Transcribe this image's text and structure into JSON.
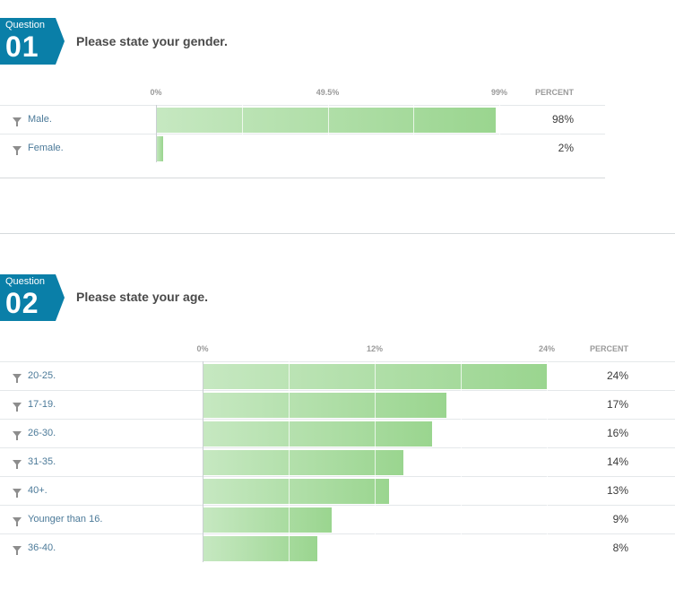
{
  "questions": [
    {
      "label": "Question",
      "number": "01",
      "text": "Please state your gender.",
      "percent_header": "PERCENT",
      "ticks": [
        "0%",
        "49.5%",
        "99%"
      ],
      "axis_max": 99
    },
    {
      "label": "Question",
      "number": "02",
      "text": "Please state your age.",
      "percent_header": "PERCENT",
      "ticks": [
        "0%",
        "12%",
        "24%"
      ],
      "axis_max": 24
    }
  ],
  "colors": {
    "badge": "#0a7fa8",
    "bar_start": "#c6e8c1",
    "bar_end": "#9ad58f",
    "label": "#4c7a99"
  },
  "icons": {
    "row_filter": "filter-icon"
  },
  "chart_data": [
    {
      "type": "bar",
      "title": "Please state your gender.",
      "categories": [
        "Male.",
        "Female."
      ],
      "values": [
        98,
        2
      ],
      "value_labels": [
        "98%",
        "2%"
      ],
      "xlim": [
        0,
        99
      ],
      "grid": true
    },
    {
      "type": "bar",
      "title": "Please state your age.",
      "categories": [
        "20-25.",
        "17-19.",
        "26-30.",
        "31-35.",
        "40+.",
        "Younger than 16.",
        "36-40."
      ],
      "values": [
        24,
        17,
        16,
        14,
        13,
        9,
        8
      ],
      "value_labels": [
        "24%",
        "17%",
        "16%",
        "14%",
        "13%",
        "9%",
        "8%"
      ],
      "xlim": [
        0,
        24
      ],
      "grid": true
    }
  ]
}
